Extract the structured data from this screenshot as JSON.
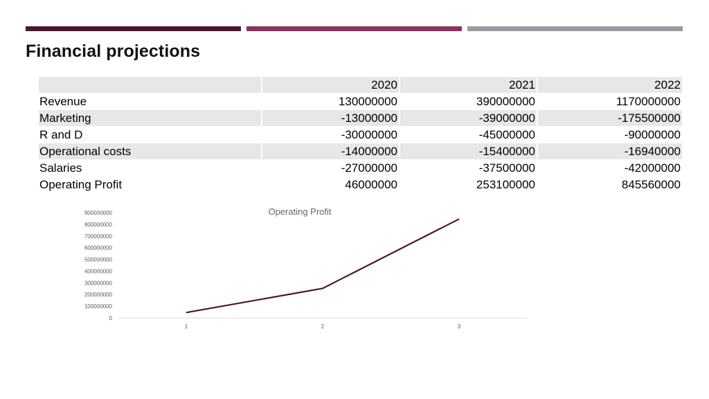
{
  "colors": {
    "bar1": "#4b1530",
    "bar2": "#8e2f64",
    "bar3": "#9a9b9e",
    "row_shade": "#e8e7e8",
    "line": "#4b1530"
  },
  "slide": {
    "title": "Financial projections"
  },
  "table": {
    "header": [
      "",
      "2020",
      "2021",
      "2022"
    ],
    "rows": [
      {
        "label": "Revenue",
        "values": [
          "130000000",
          "390000000",
          "1170000000"
        ]
      },
      {
        "label": "Marketing",
        "values": [
          "-13000000",
          "-39000000",
          "-175500000"
        ]
      },
      {
        "label": "R and D",
        "values": [
          "-30000000",
          "-45000000",
          "-90000000"
        ]
      },
      {
        "label": "Operational costs",
        "values": [
          "-14000000",
          "-15400000",
          "-16940000"
        ]
      },
      {
        "label": "Salaries",
        "values": [
          "-27000000",
          "-37500000",
          "-42000000"
        ]
      },
      {
        "label": "Operating Profit",
        "values": [
          "46000000",
          "253100000",
          "845560000"
        ]
      }
    ]
  },
  "chart_data": {
    "type": "line",
    "title": "Operating Profit",
    "x": [
      1,
      2,
      3
    ],
    "series": [
      {
        "values": [
          46000000,
          253100000,
          845560000
        ]
      }
    ],
    "ylim": [
      0,
      900000000
    ],
    "yticks": [
      0,
      100000000,
      200000000,
      300000000,
      400000000,
      500000000,
      600000000,
      700000000,
      800000000,
      900000000
    ],
    "xticks": [
      "1",
      "2",
      "3"
    ],
    "grid": false,
    "legend": "none"
  }
}
